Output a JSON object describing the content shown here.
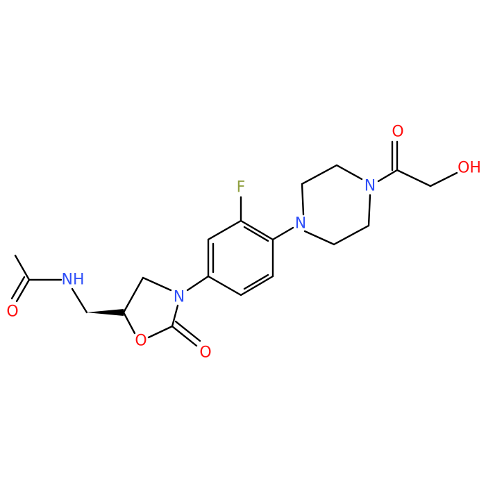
{
  "atoms": [
    {
      "label": "O"
    },
    {
      "label": "NH"
    },
    {
      "label": "O"
    },
    {
      "label": "N"
    },
    {
      "label": "O"
    },
    {
      "label": "F"
    },
    {
      "label": "N"
    },
    {
      "label": "N"
    },
    {
      "label": "O"
    },
    {
      "label": "OH"
    }
  ]
}
